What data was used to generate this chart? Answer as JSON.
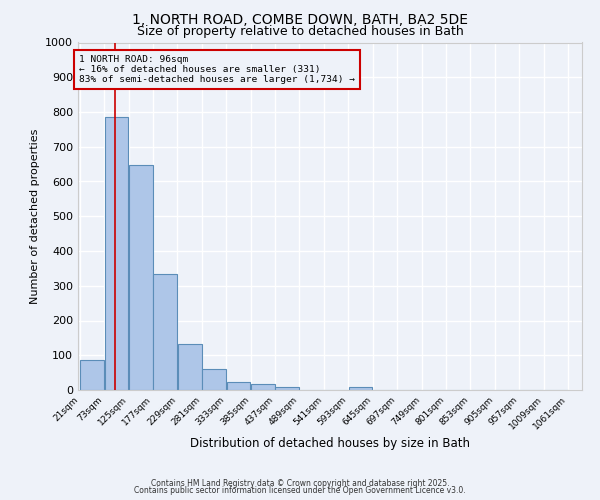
{
  "title1": "1, NORTH ROAD, COMBE DOWN, BATH, BA2 5DE",
  "title2": "Size of property relative to detached houses in Bath",
  "xlabel": "Distribution of detached houses by size in Bath",
  "ylabel": "Number of detached properties",
  "bar_edges": [
    21,
    73,
    125,
    177,
    229,
    281,
    333,
    385,
    437,
    489,
    541,
    593,
    645,
    697,
    749,
    801,
    853,
    905,
    957,
    1009,
    1061
  ],
  "bar_heights": [
    85,
    785,
    648,
    335,
    133,
    60,
    22,
    18,
    10,
    0,
    0,
    10,
    0,
    0,
    0,
    0,
    0,
    0,
    0,
    0
  ],
  "bar_color": "#aec6e8",
  "bar_edge_color": "#5b8db8",
  "bar_linewidth": 0.8,
  "red_line_x": 96,
  "red_line_color": "#cc0000",
  "ylim": [
    0,
    1000
  ],
  "yticks": [
    0,
    100,
    200,
    300,
    400,
    500,
    600,
    700,
    800,
    900,
    1000
  ],
  "annotation_text": "1 NORTH ROAD: 96sqm\n← 16% of detached houses are smaller (331)\n83% of semi-detached houses are larger (1,734) →",
  "annotation_box_color": "#cc0000",
  "annotation_text_color": "#000000",
  "footer1": "Contains HM Land Registry data © Crown copyright and database right 2025.",
  "footer2": "Contains public sector information licensed under the Open Government Licence v3.0.",
  "bg_color": "#eef2f9",
  "grid_color": "#ffffff",
  "title1_fontsize": 10,
  "title2_fontsize": 9
}
